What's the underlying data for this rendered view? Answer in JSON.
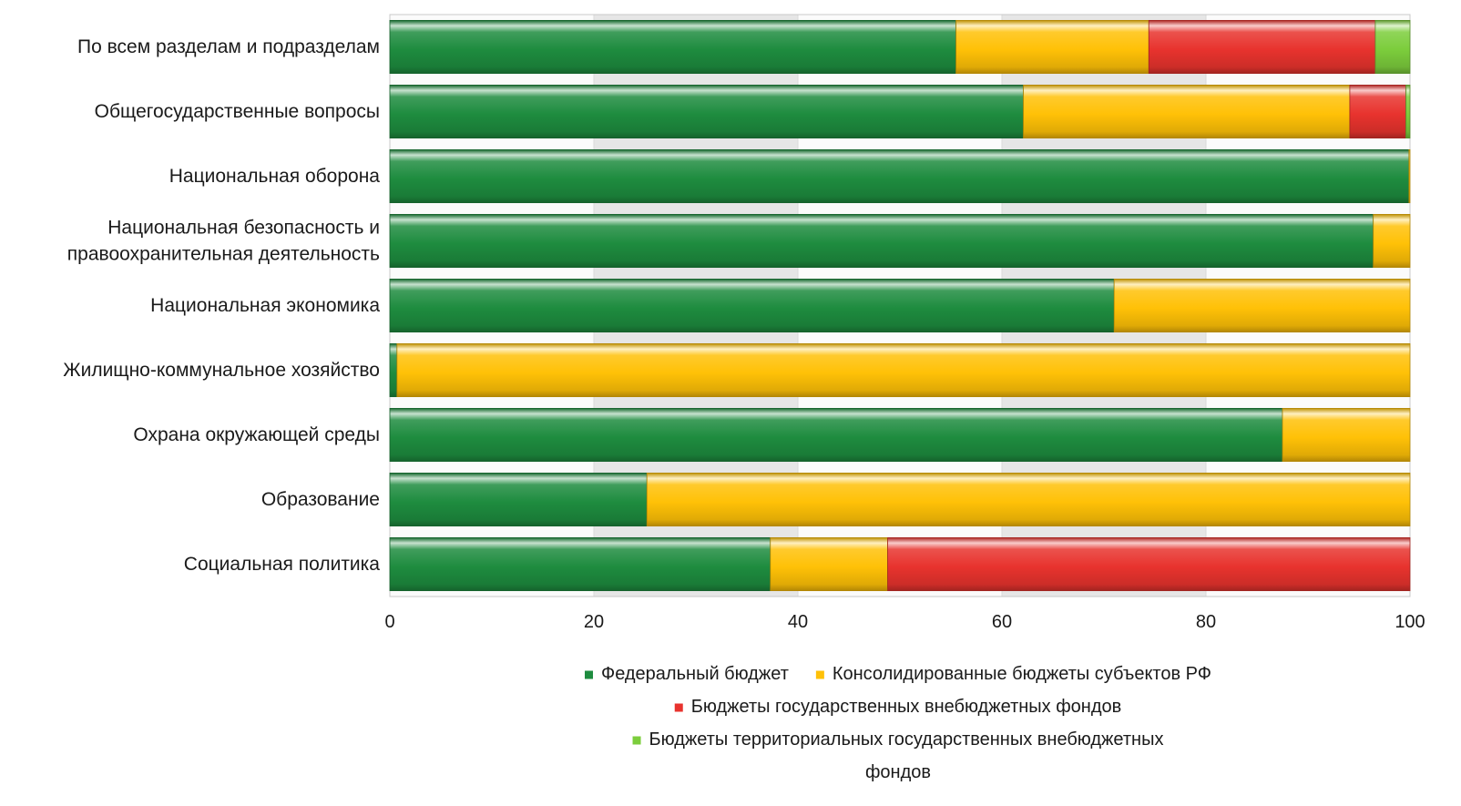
{
  "chart_data": {
    "type": "bar",
    "orientation": "horizontal",
    "stacked": "percent",
    "categories": [
      [
        "По всем разделам и подразделам"
      ],
      [
        "Общегосударственные вопросы"
      ],
      [
        "Национальная оборона"
      ],
      [
        "Национальная безопасность и",
        "правоохранительная деятельность"
      ],
      [
        "Национальная экономика"
      ],
      [
        "Жилищно-коммунальное хозяйство"
      ],
      [
        "Охрана окружающей среды"
      ],
      [
        "Образование"
      ],
      [
        "Социальная политика"
      ]
    ],
    "series": [
      {
        "name": "Федеральный бюджет",
        "color": "#1e8c3f",
        "values": [
          55.5,
          62.1,
          99.9,
          96.4,
          71.0,
          0.7,
          87.5,
          25.2,
          37.3
        ]
      },
      {
        "name": "Консолидированные бюджеты субъектов РФ",
        "color": "#ffc107",
        "values": [
          18.9,
          32.0,
          0.1,
          3.6,
          29.0,
          99.3,
          12.5,
          74.8,
          11.5
        ]
      },
      {
        "name": "Бюджеты государственных внебюджетных фондов",
        "color": "#e8332e",
        "values": [
          22.2,
          5.5,
          0,
          0,
          0,
          0,
          0,
          0,
          51.2
        ]
      },
      {
        "name": "Бюджеты территориальных государственных внебюджетных фондов",
        "color": "#7ccd3c",
        "values": [
          3.4,
          0.4,
          0,
          0,
          0,
          0,
          0,
          0,
          0
        ]
      }
    ],
    "xlim": [
      0,
      100
    ],
    "xticks": [
      0,
      20,
      40,
      60,
      80,
      100
    ],
    "xticks_labels": [
      "0",
      "20",
      "40",
      "60",
      "80",
      "100"
    ],
    "grid": "vertical alternating bands",
    "legend_position": "bottom",
    "legend_lines": [
      [
        {
          "series": 0,
          "text": "Федеральный бюджет"
        },
        {
          "series": 1,
          "text": "Консолидированные бюджеты субъектов РФ"
        }
      ],
      [
        {
          "series": 2,
          "text": "Бюджеты государственных внебюджетных фондов"
        }
      ],
      [
        {
          "series": 3,
          "text": "Бюджеты территориальных государственных внебюджетных"
        }
      ],
      [
        {
          "series": -1,
          "text": "фондов"
        }
      ]
    ]
  }
}
